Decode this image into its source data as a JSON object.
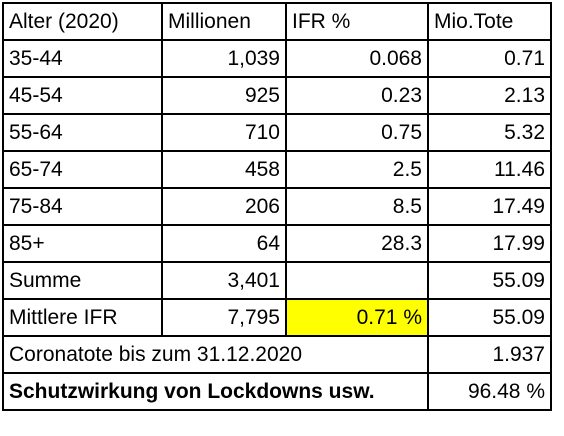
{
  "header": [
    "Alter (2020)",
    "Millionen",
    "IFR %",
    "Mio.Tote"
  ],
  "rows": [
    [
      "35-44",
      "1,039",
      "0.068",
      "0.71"
    ],
    [
      "45-54",
      "925",
      "0.23",
      "2.13"
    ],
    [
      "55-64",
      "710",
      "0.75",
      "5.32"
    ],
    [
      "65-74",
      "458",
      "2.5",
      "11.46"
    ],
    [
      "75-84",
      "206",
      "8.5",
      "17.49"
    ],
    [
      "85+",
      "64",
      "28.3",
      "17.99"
    ]
  ],
  "summe": {
    "label": "Summe",
    "millionen": "3,401",
    "ifr": "",
    "tote": "55.09"
  },
  "mittlere": {
    "label": "Mittlere IFR",
    "millionen": "7,795",
    "ifr": "0.71 %",
    "tote": "55.09"
  },
  "coronatote": {
    "label": "Coronatote bis zum 31.12.2020",
    "value": "1.937"
  },
  "schutz": {
    "label": "Schutzwirkung von Lockdowns usw.",
    "value": "96.48 %"
  },
  "highlight_color": "#ffff00"
}
